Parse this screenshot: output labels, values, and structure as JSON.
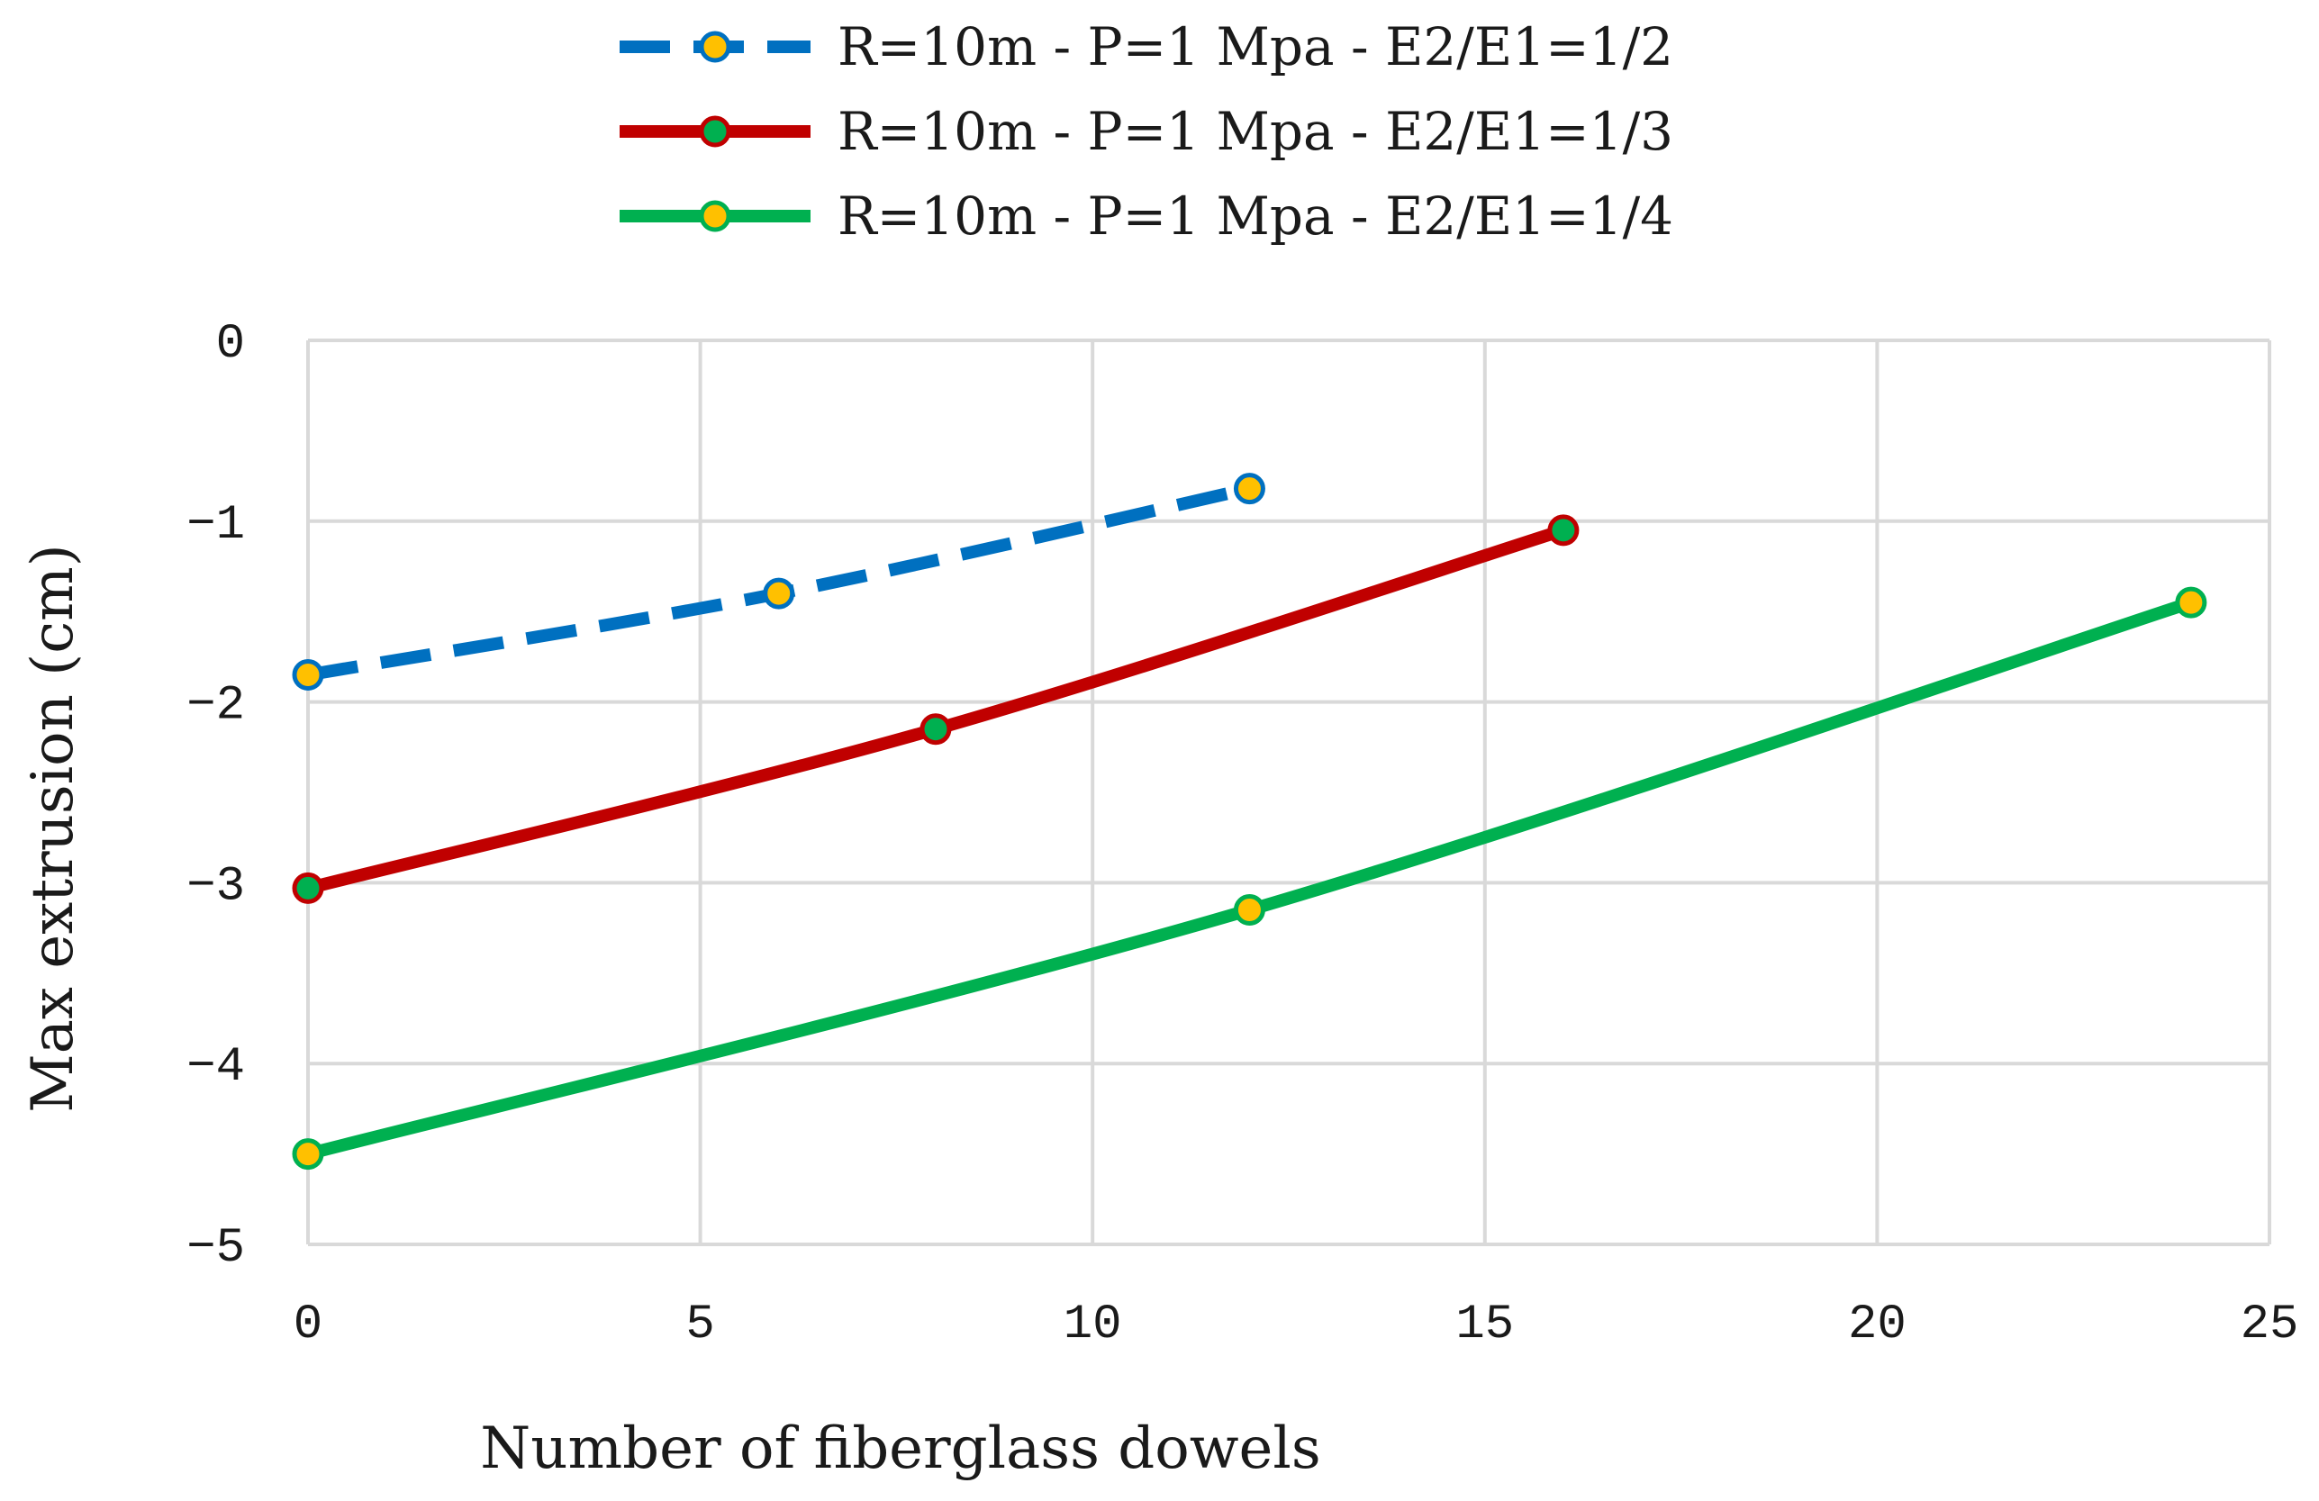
{
  "chart_data": {
    "type": "line",
    "title": "",
    "xlabel": "Number of fiberglass dowels",
    "ylabel": "Max extrusion (cm)",
    "xlim": [
      0,
      25
    ],
    "ylim": [
      -5,
      0
    ],
    "xticks": [
      0,
      5,
      10,
      15,
      20,
      25
    ],
    "yticks": [
      0,
      -1,
      -2,
      -3,
      -4,
      -5
    ],
    "xtick_labels": [
      "0",
      "5",
      "10",
      "15",
      "20",
      "25"
    ],
    "ytick_labels": [
      "0",
      "−1",
      "−2",
      "−3",
      "−4",
      "−5"
    ],
    "grid": true,
    "legend_position": "top-center",
    "series": [
      {
        "name": "R=10m - P=1 Mpa - E2/E1=1/2",
        "x": [
          0,
          6,
          12
        ],
        "y": [
          -1.85,
          -1.4,
          -0.82
        ],
        "line_color": "#0070C0",
        "line_style": "dashed",
        "marker_fill": "#FFC000",
        "marker_edge": "#0070C0"
      },
      {
        "name": "R=10m - P=1 Mpa - E2/E1=1/3",
        "x": [
          0,
          8,
          16
        ],
        "y": [
          -3.03,
          -2.15,
          -1.05
        ],
        "line_color": "#C00000",
        "line_style": "solid",
        "marker_fill": "#00B050",
        "marker_edge": "#C00000"
      },
      {
        "name": "R=10m - P=1 Mpa - E2/E1=1/4",
        "x": [
          0,
          12,
          24
        ],
        "y": [
          -4.5,
          -3.15,
          -1.45
        ],
        "line_color": "#00B050",
        "line_style": "solid",
        "marker_fill": "#FFC000",
        "marker_edge": "#00B050"
      }
    ],
    "grid_color": "#D9D9D9"
  }
}
